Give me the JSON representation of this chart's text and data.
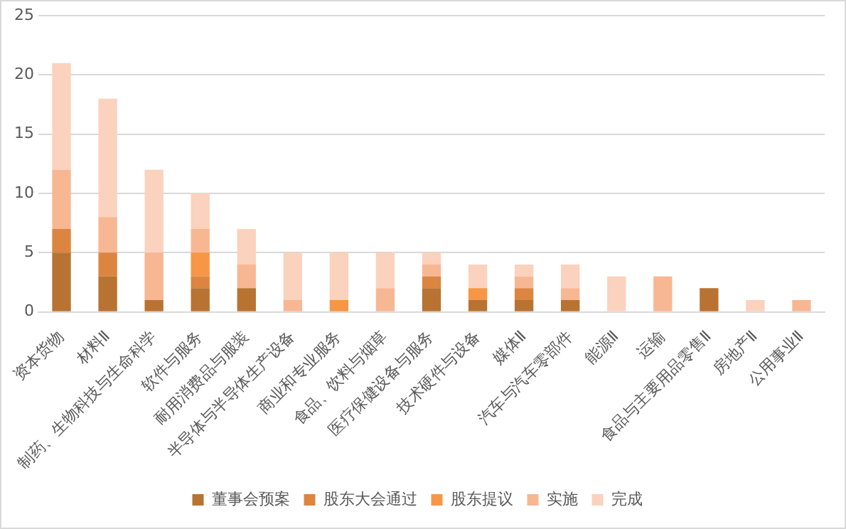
{
  "chart_data": {
    "type": "bar",
    "stacked": true,
    "categories": [
      "资本货物",
      "材料Ⅱ",
      "制药、生物科技与生命科学",
      "软件与服务",
      "耐用消费品与服装",
      "半导体与半导体生产设备",
      "商业和专业服务",
      "食品、饮料与烟草",
      "医疗保健设备与服务",
      "技术硬件与设备",
      "媒体Ⅱ",
      "汽车与汽车零部件",
      "能源Ⅱ",
      "运输",
      "食品与主要用品零售Ⅱ",
      "房地产Ⅱ",
      "公用事业Ⅱ"
    ],
    "series": [
      {
        "name": "董事会预案",
        "color": "#b87333",
        "values": [
          5,
          3,
          1,
          2,
          2,
          0,
          0,
          0,
          2,
          1,
          1,
          1,
          0,
          0,
          2,
          0,
          0
        ]
      },
      {
        "name": "股东大会通过",
        "color": "#dc8541",
        "values": [
          2,
          2,
          0,
          1,
          0,
          0,
          0,
          0,
          1,
          0,
          1,
          0,
          0,
          0,
          0,
          0,
          0
        ]
      },
      {
        "name": "股东提议",
        "color": "#f79646",
        "values": [
          0,
          0,
          0,
          2,
          0,
          0,
          1,
          0,
          0,
          1,
          0,
          0,
          0,
          0,
          0,
          0,
          0
        ]
      },
      {
        "name": "实施",
        "color": "#f8b793",
        "values": [
          5,
          3,
          4,
          2,
          2,
          1,
          0,
          2,
          1,
          0,
          1,
          1,
          0,
          3,
          0,
          0,
          1
        ]
      },
      {
        "name": "完成",
        "color": "#fbd2bd",
        "values": [
          9,
          10,
          7,
          3,
          3,
          4,
          4,
          3,
          1,
          2,
          1,
          2,
          3,
          0,
          0,
          1,
          0
        ]
      }
    ],
    "ylim": [
      0,
      25
    ],
    "yticks": [
      0,
      5,
      10,
      15,
      20,
      25
    ],
    "grid": "y",
    "legend": "bottom"
  }
}
